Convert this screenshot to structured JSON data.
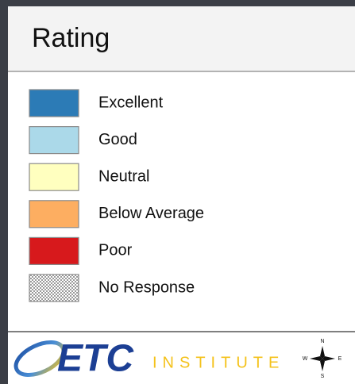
{
  "legend": {
    "title": "Rating",
    "items": [
      {
        "label": "Excellent",
        "color": "#2c7bb6"
      },
      {
        "label": "Good",
        "color": "#abd9e9"
      },
      {
        "label": "Neutral",
        "color": "#ffffbf"
      },
      {
        "label": "Below Average",
        "color": "#fdae61"
      },
      {
        "label": "Poor",
        "color": "#d7191c"
      },
      {
        "label": "No Response",
        "color": "#ffffff",
        "pattern": "crosshatch"
      }
    ]
  },
  "logo": {
    "name": "ETC",
    "subtitle": "INSTITUTE"
  },
  "compass": {
    "n": "N",
    "e": "E",
    "s": "S",
    "w": "W"
  }
}
